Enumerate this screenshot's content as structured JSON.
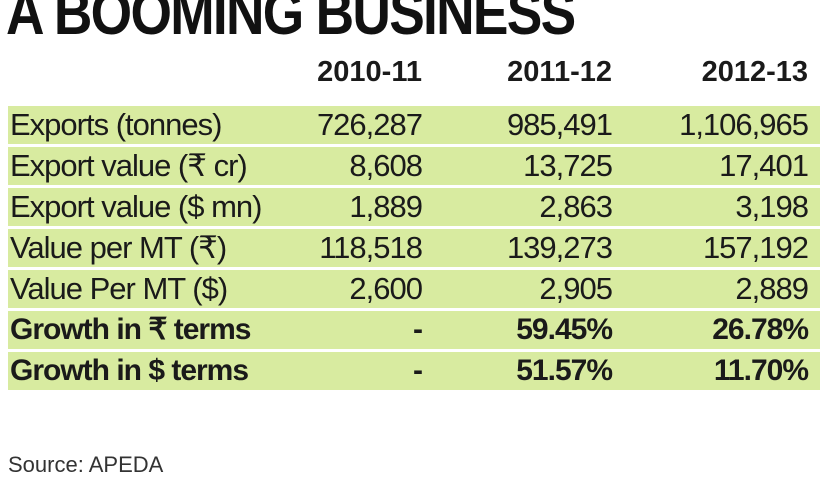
{
  "chart_data": {
    "type": "table",
    "title": "A BOOMING BUSINESS",
    "columns": [
      "2010-11",
      "2011-12",
      "2012-13"
    ],
    "rows": [
      {
        "label": "Exports (tonnes)",
        "values": [
          "726,287",
          "985,491",
          "1,106,965"
        ]
      },
      {
        "label": "Export value (₹ cr)",
        "values": [
          "8,608",
          "13,725",
          "17,401"
        ]
      },
      {
        "label": "Export value ($ mn)",
        "values": [
          "1,889",
          "2,863",
          "3,198"
        ]
      },
      {
        "label": "Value per MT (₹)",
        "values": [
          "118,518",
          "139,273",
          "157,192"
        ]
      },
      {
        "label": "Value Per MT ($)",
        "values": [
          "2,600",
          "2,905",
          "2,889"
        ]
      },
      {
        "label": "Growth in ₹ terms",
        "values": [
          "-",
          "59.45%",
          "26.78%"
        ]
      },
      {
        "label": "Growth in $ terms",
        "values": [
          "-",
          "51.57%",
          "11.70%"
        ]
      }
    ],
    "source": "Source: APEDA",
    "row_color": "#d8eba0"
  }
}
